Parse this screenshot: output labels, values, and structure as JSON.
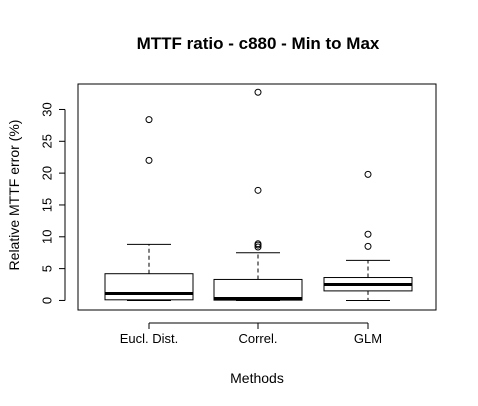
{
  "chart_data": {
    "type": "boxplot",
    "title": "MTTF ratio - c880 - Min to Max",
    "xlabel": "Methods",
    "ylabel": "Relative MTTF error (%)",
    "ylim": [
      -1.5,
      34
    ],
    "yticks": [
      0,
      5,
      10,
      15,
      20,
      25,
      30
    ],
    "categories": [
      "Eucl. Dist.",
      "Correl.",
      "GLM"
    ],
    "boxes": [
      {
        "category": "Eucl. Dist.",
        "min": 0,
        "q1": 0.1,
        "median": 1.1,
        "q3": 4.2,
        "max": 8.8,
        "outliers": [
          22.0,
          28.4
        ]
      },
      {
        "category": "Correl.",
        "min": 0,
        "q1": 0.05,
        "median": 0.3,
        "q3": 3.3,
        "max": 7.5,
        "outliers": [
          8.4,
          8.7,
          8.9,
          17.3,
          32.7
        ]
      },
      {
        "category": "GLM",
        "min": 0,
        "q1": 1.5,
        "median": 2.5,
        "q3": 3.6,
        "max": 6.3,
        "outliers": [
          8.5,
          10.4,
          19.8
        ]
      }
    ],
    "grid": false,
    "legend": "none"
  }
}
